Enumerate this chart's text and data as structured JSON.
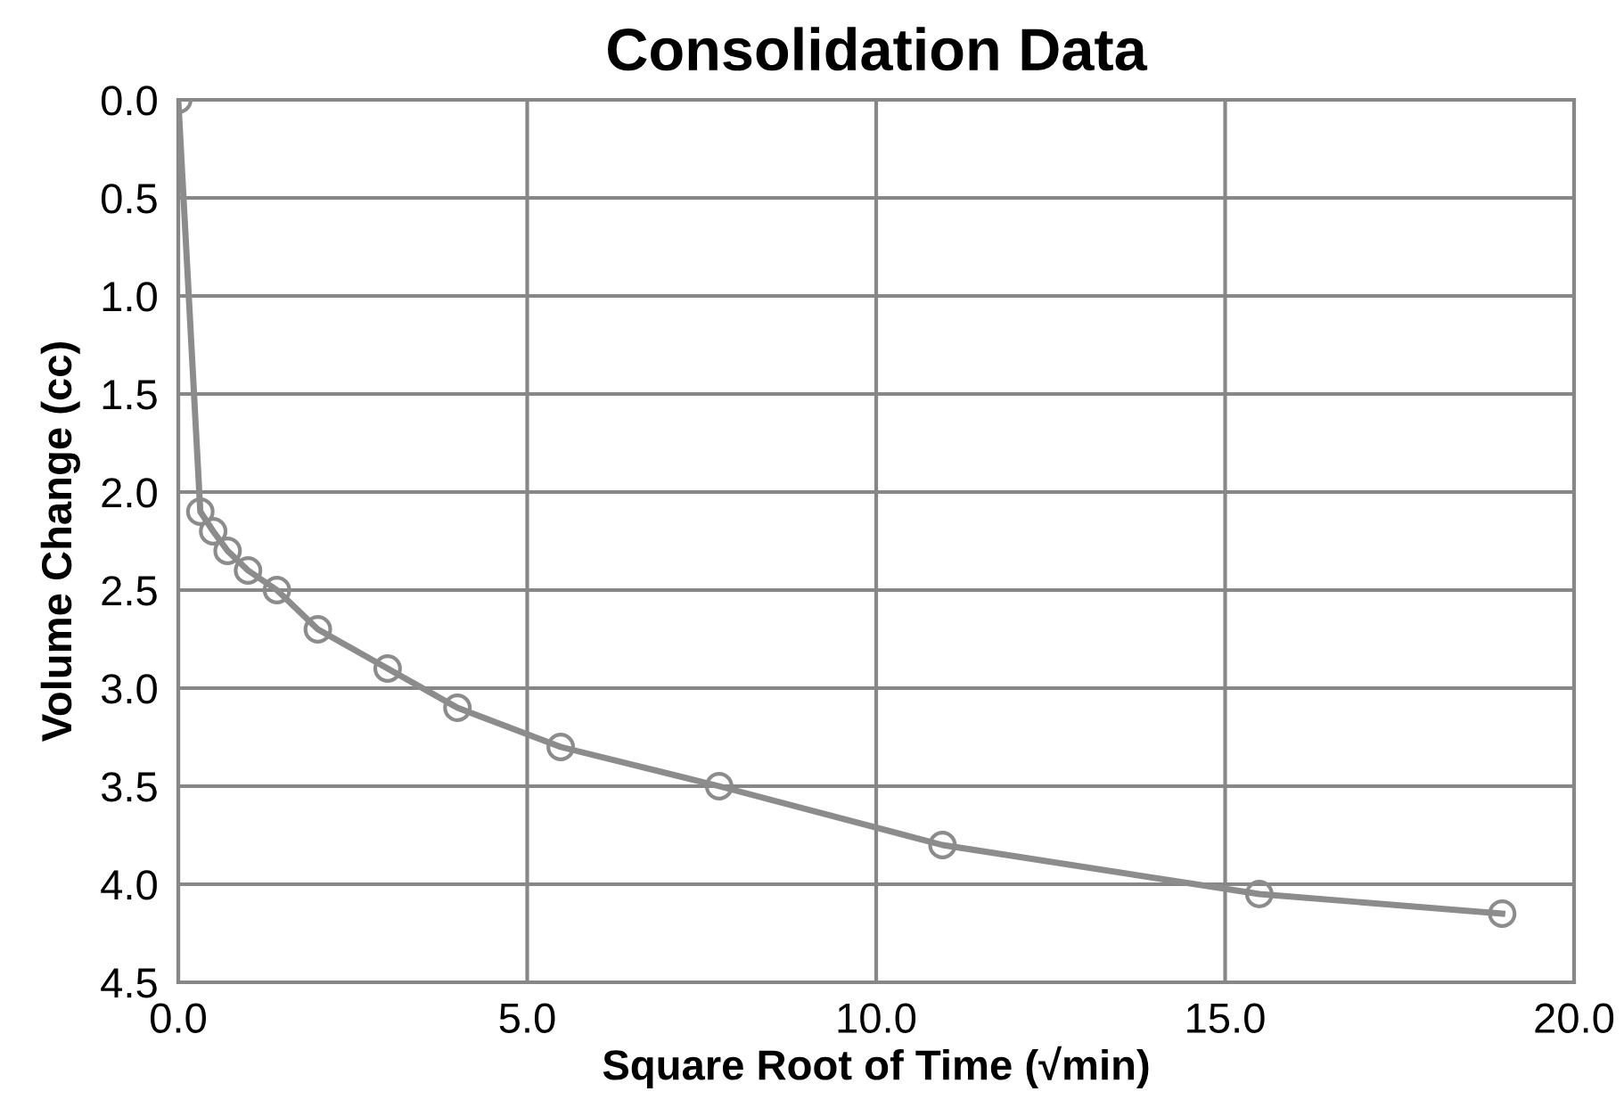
{
  "chart_data": {
    "type": "line",
    "title": "Consolidation Data",
    "xlabel": "Square Root of Time (√min)",
    "ylabel": "Volume Change (cc)",
    "x": [
      0,
      0.316,
      0.5,
      0.707,
      1.0,
      1.414,
      2.0,
      3.0,
      4.0,
      5.48,
      7.75,
      10.95,
      15.49,
      18.97
    ],
    "series": [
      {
        "color": "#8c8c8c",
        "values": [
          0,
          2.1,
          2.2,
          2.3,
          2.4,
          2.5,
          2.7,
          2.9,
          3.1,
          3.3,
          3.5,
          3.8,
          4.05,
          4.15
        ]
      }
    ],
    "xlim": [
      0,
      20
    ],
    "ylim": [
      4.5,
      0
    ],
    "xticks": [
      {
        "value": 0,
        "label": "0.0"
      },
      {
        "value": 5,
        "label": "5.0"
      },
      {
        "value": 10,
        "label": "10.0"
      },
      {
        "value": 15,
        "label": "15.0"
      },
      {
        "value": 20,
        "label": "20.0"
      }
    ],
    "yticks": [
      {
        "value": 0,
        "label": "0.0"
      },
      {
        "value": 0.5,
        "label": "0.5"
      },
      {
        "value": 1,
        "label": "1.0"
      },
      {
        "value": 1.5,
        "label": "1.5"
      },
      {
        "value": 2,
        "label": "2.0"
      },
      {
        "value": 2.5,
        "label": "2.5"
      },
      {
        "value": 3,
        "label": "3.0"
      },
      {
        "value": 3.5,
        "label": "3.5"
      },
      {
        "value": 4,
        "label": "4.0"
      },
      {
        "value": 4.5,
        "label": "4.5"
      }
    ],
    "grid": true,
    "marker": "circle",
    "line_style": "solid"
  }
}
